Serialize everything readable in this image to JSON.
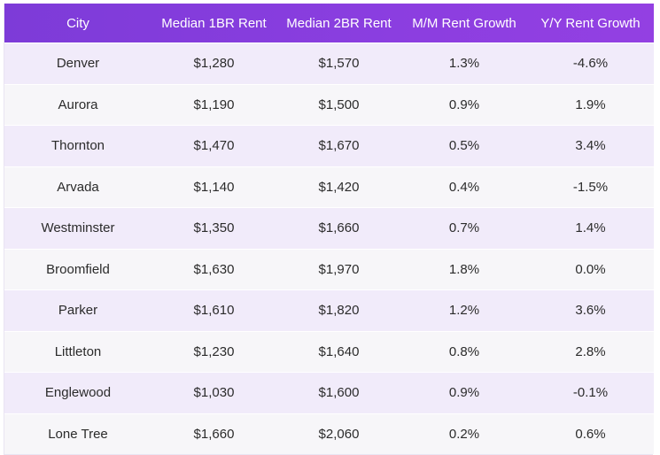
{
  "table": {
    "columns": [
      "City",
      "Median 1BR Rent",
      "Median 2BR Rent",
      "M/M Rent Growth",
      "Y/Y Rent Growth"
    ],
    "rows": [
      [
        "Denver",
        "$1,280",
        "$1,570",
        "1.3%",
        "-4.6%"
      ],
      [
        "Aurora",
        "$1,190",
        "$1,500",
        "0.9%",
        "1.9%"
      ],
      [
        "Thornton",
        "$1,470",
        "$1,670",
        "0.5%",
        "3.4%"
      ],
      [
        "Arvada",
        "$1,140",
        "$1,420",
        "0.4%",
        "-1.5%"
      ],
      [
        "Westminster",
        "$1,350",
        "$1,660",
        "0.7%",
        "1.4%"
      ],
      [
        "Broomfield",
        "$1,630",
        "$1,970",
        "1.8%",
        "0.0%"
      ],
      [
        "Parker",
        "$1,610",
        "$1,820",
        "1.2%",
        "3.6%"
      ],
      [
        "Littleton",
        "$1,230",
        "$1,640",
        "0.8%",
        "2.8%"
      ],
      [
        "Englewood",
        "$1,030",
        "$1,600",
        "0.9%",
        "-0.1%"
      ],
      [
        "Lone Tree",
        "$1,660",
        "$2,060",
        "0.2%",
        "0.6%"
      ]
    ]
  },
  "chart_data": {
    "type": "table",
    "columns": [
      "City",
      "Median 1BR Rent",
      "Median 2BR Rent",
      "M/M Rent Growth",
      "Y/Y Rent Growth"
    ],
    "categories": [
      "Denver",
      "Aurora",
      "Thornton",
      "Arvada",
      "Westminster",
      "Broomfield",
      "Parker",
      "Littleton",
      "Englewood",
      "Lone Tree"
    ],
    "series": [
      {
        "name": "Median 1BR Rent",
        "values": [
          1280,
          1190,
          1470,
          1140,
          1350,
          1630,
          1610,
          1230,
          1030,
          1660
        ]
      },
      {
        "name": "Median 2BR Rent",
        "values": [
          1570,
          1500,
          1670,
          1420,
          1660,
          1970,
          1820,
          1640,
          1600,
          2060
        ]
      },
      {
        "name": "M/M Rent Growth",
        "values": [
          1.3,
          0.9,
          0.5,
          0.4,
          0.7,
          1.8,
          1.2,
          0.8,
          0.9,
          0.2
        ]
      },
      {
        "name": "Y/Y Rent Growth",
        "values": [
          -4.6,
          1.9,
          3.4,
          -1.5,
          1.4,
          0.0,
          3.6,
          2.8,
          -0.1,
          0.6
        ]
      }
    ]
  },
  "colors": {
    "header_start": "#7d3bd8",
    "header_end": "#9340e2",
    "header_text": "#ffffff",
    "row_odd": "#f1ebfa",
    "row_even": "#f7f6f9",
    "cell_text": "#2b2b2b"
  }
}
